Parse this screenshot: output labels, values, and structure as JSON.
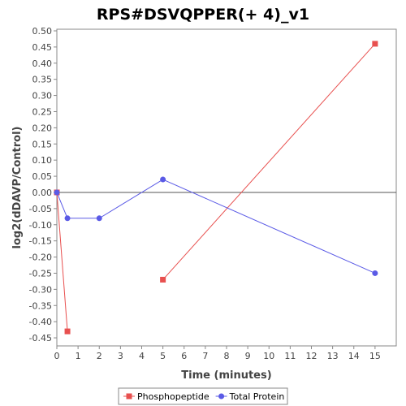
{
  "chart_data": {
    "type": "line",
    "title": "RPS#DSVQPPER(+ 4)_v1",
    "xlabel": "Time (minutes)",
    "ylabel": "log2(dDAVP/Control)",
    "xlim": [
      0,
      16
    ],
    "ylim": [
      -0.475,
      0.505
    ],
    "xticks": [
      0,
      1,
      2,
      3,
      4,
      5,
      6,
      7,
      8,
      9,
      10,
      11,
      12,
      13,
      14,
      15
    ],
    "yticks": [
      -0.45,
      -0.4,
      -0.35,
      -0.3,
      -0.25,
      -0.2,
      -0.15,
      -0.1,
      -0.05,
      0.0,
      0.05,
      0.1,
      0.15,
      0.2,
      0.25,
      0.3,
      0.35,
      0.4,
      0.45,
      0.5
    ],
    "zero_line": true,
    "grid": false,
    "legend_position": "bottom",
    "series": [
      {
        "name": "Phosphopeptide",
        "color": "#e8504f",
        "marker": "square",
        "segments": [
          [
            [
              0,
              0.0
            ],
            [
              0.5,
              -0.43
            ]
          ],
          [
            [
              5,
              -0.27
            ],
            [
              15,
              0.46
            ]
          ]
        ]
      },
      {
        "name": "Total Protein",
        "color": "#5a5ae6",
        "marker": "circle",
        "segments": [
          [
            [
              0,
              0.0
            ],
            [
              0.5,
              -0.08
            ],
            [
              2,
              -0.08
            ],
            [
              5,
              0.04
            ],
            [
              15,
              -0.25
            ]
          ]
        ]
      }
    ]
  }
}
